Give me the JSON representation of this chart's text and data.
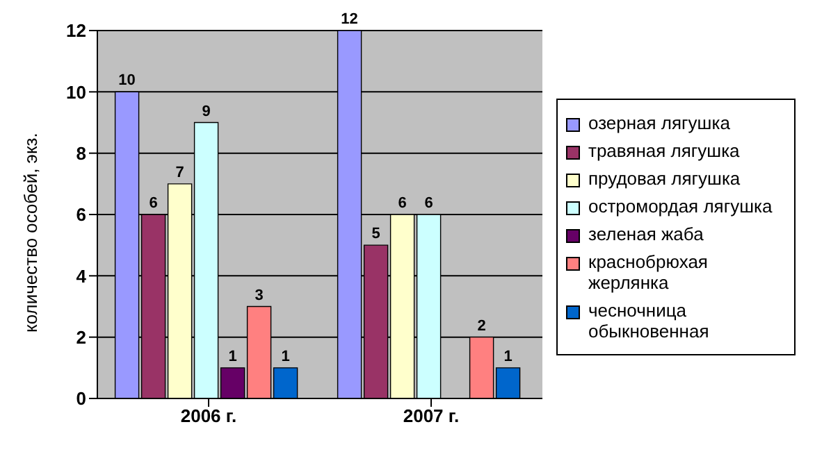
{
  "chart_data": {
    "type": "bar",
    "ylabel": "количество особей, экз.",
    "categories": [
      "2006 г.",
      "2007 г."
    ],
    "ylim": [
      0,
      12
    ],
    "yticks": [
      0,
      2,
      4,
      6,
      8,
      10,
      12
    ],
    "grid": "y",
    "legend": "right",
    "series": [
      {
        "name": "озерная лягушка",
        "color": "#9999ff",
        "values": [
          10,
          12
        ],
        "value_labels": [
          "10",
          "12"
        ]
      },
      {
        "name": "травяная лягушка",
        "color": "#993366",
        "values": [
          6,
          5
        ],
        "value_labels": [
          "6",
          "5"
        ]
      },
      {
        "name": "прудовая лягушка",
        "color": "#ffffcc",
        "values": [
          7,
          6
        ],
        "value_labels": [
          "7",
          "6"
        ]
      },
      {
        "name": "остромордая лягушка",
        "color": "#ccffff",
        "values": [
          9,
          6
        ],
        "value_labels": [
          "9",
          "6"
        ]
      },
      {
        "name": "зеленая жаба",
        "color": "#660066",
        "values": [
          1,
          0
        ],
        "value_labels": [
          "1",
          null
        ]
      },
      {
        "name": "краснобрюхая жерлянка",
        "color": "#ff8080",
        "values": [
          3,
          2
        ],
        "value_labels": [
          "3",
          "2"
        ]
      },
      {
        "name": "чесночница обыкновенная",
        "color": "#0066cc",
        "values": [
          1,
          1
        ],
        "value_labels": [
          "1",
          "1"
        ]
      }
    ]
  }
}
